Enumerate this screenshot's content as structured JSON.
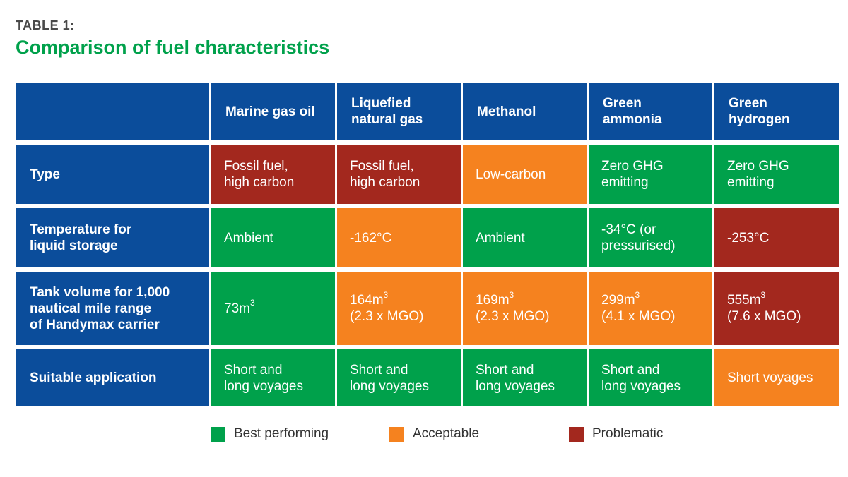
{
  "eyebrow": "TABLE 1:",
  "title": "Comparison of fuel characteristics",
  "colors": {
    "header": "#0b4d9b",
    "best": "#00a14b",
    "acceptable": "#f5821f",
    "problematic": "#a3281e",
    "title": "#00a14b"
  },
  "table": {
    "columns": [
      "Marine gas oil",
      "Liquefied\nnatural gas",
      "Methanol",
      "Green\nammonia",
      "Green\nhydrogen"
    ],
    "rows": [
      {
        "label": "Type",
        "cells": [
          {
            "text": "Fossil fuel,\nhigh carbon",
            "rating": "problematic"
          },
          {
            "text": "Fossil fuel,\nhigh carbon",
            "rating": "problematic"
          },
          {
            "text": "Low-carbon",
            "rating": "acceptable"
          },
          {
            "text": "Zero GHG\nemitting",
            "rating": "best"
          },
          {
            "text": "Zero GHG\nemitting",
            "rating": "best"
          }
        ]
      },
      {
        "label": "Temperature for\nliquid storage",
        "cells": [
          {
            "text": "Ambient",
            "rating": "best"
          },
          {
            "text": "-162°C",
            "rating": "acceptable"
          },
          {
            "text": "Ambient",
            "rating": "best"
          },
          {
            "text": "-34°C (or\npressurised)",
            "rating": "best"
          },
          {
            "text": "-253°C",
            "rating": "problematic"
          }
        ]
      },
      {
        "label": "Tank volume for 1,000\nnautical mile range\nof Handymax carrier",
        "cells": [
          {
            "value": "73",
            "unit": "m",
            "exp": "3",
            "note": "",
            "rating": "best"
          },
          {
            "value": "164",
            "unit": "m",
            "exp": "3",
            "note": "(2.3 x MGO)",
            "rating": "acceptable"
          },
          {
            "value": "169",
            "unit": "m",
            "exp": "3",
            "note": "(2.3 x MGO)",
            "rating": "acceptable"
          },
          {
            "value": "299",
            "unit": "m",
            "exp": "3",
            "note": "(4.1 x MGO)",
            "rating": "acceptable"
          },
          {
            "value": "555",
            "unit": "m",
            "exp": "3",
            "note": "(7.6 x MGO)",
            "rating": "problematic"
          }
        ]
      },
      {
        "label": "Suitable application",
        "cells": [
          {
            "text": "Short and\nlong voyages",
            "rating": "best"
          },
          {
            "text": "Short and\nlong voyages",
            "rating": "best"
          },
          {
            "text": "Short and\nlong voyages",
            "rating": "best"
          },
          {
            "text": "Short and\nlong voyages",
            "rating": "best"
          },
          {
            "text": "Short voyages",
            "rating": "acceptable"
          }
        ]
      }
    ]
  },
  "legend": [
    {
      "label": "Best performing",
      "rating": "best"
    },
    {
      "label": "Acceptable",
      "rating": "acceptable"
    },
    {
      "label": "Problematic",
      "rating": "problematic"
    }
  ]
}
